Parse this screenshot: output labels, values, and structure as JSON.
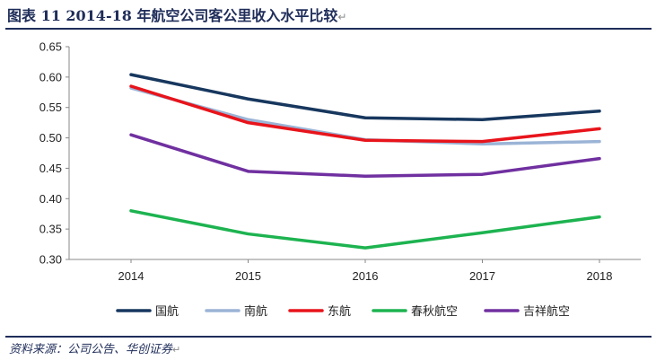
{
  "title": {
    "text": "图表 11   2014-18 年航空公司客公里收入水平比较",
    "mark": "↵"
  },
  "source": {
    "text": "资料来源：公司公告、华创证券",
    "mark": "↵"
  },
  "chart_data": {
    "type": "line",
    "title": "",
    "xlabel": "",
    "ylabel": "",
    "categories": [
      "2014",
      "2015",
      "2016",
      "2017",
      "2018"
    ],
    "ylim": [
      0.3,
      0.65
    ],
    "yticks": [
      "0.30",
      "0.35",
      "0.40",
      "0.45",
      "0.50",
      "0.55",
      "0.60",
      "0.65"
    ],
    "grid": false,
    "legend_position": "bottom",
    "series": [
      {
        "name": "国航",
        "color": "#17375e",
        "values": [
          0.604,
          0.564,
          0.533,
          0.53,
          0.544
        ]
      },
      {
        "name": "南航",
        "color": "#9bb4d6",
        "values": [
          0.582,
          0.53,
          0.497,
          0.49,
          0.494
        ]
      },
      {
        "name": "东航",
        "color": "#e8141b",
        "values": [
          0.585,
          0.525,
          0.496,
          0.494,
          0.515
        ]
      },
      {
        "name": "春秋航空",
        "color": "#1db350",
        "values": [
          0.38,
          0.342,
          0.319,
          0.344,
          0.37
        ]
      },
      {
        "name": "吉祥航空",
        "color": "#7030a0",
        "values": [
          0.505,
          0.445,
          0.437,
          0.44,
          0.466
        ]
      }
    ]
  }
}
